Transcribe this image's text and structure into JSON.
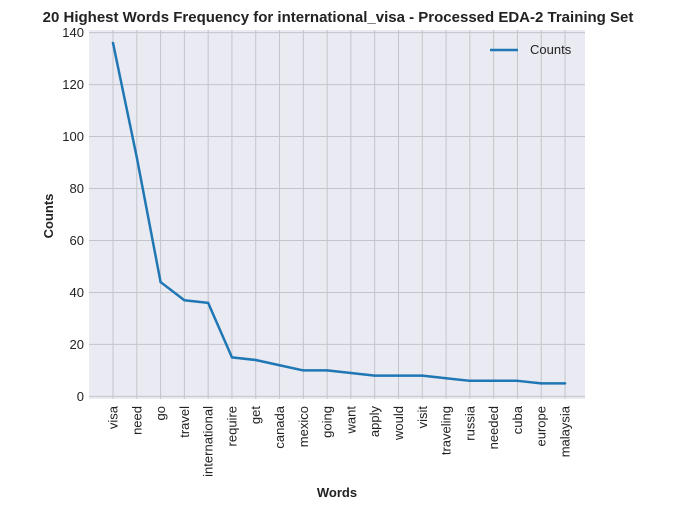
{
  "chart_data": {
    "type": "line",
    "title": "20 Highest Words Frequency for international_visa - Processed EDA-2 Training Set",
    "xlabel": "Words",
    "ylabel": "Counts",
    "ylim": [
      -1,
      141
    ],
    "yticks": [
      0,
      20,
      40,
      60,
      80,
      100,
      120,
      140
    ],
    "grid": true,
    "legend_position": "top-right",
    "categories": [
      "visa",
      "need",
      "go",
      "travel",
      "international",
      "require",
      "get",
      "canada",
      "mexico",
      "going",
      "want",
      "apply",
      "would",
      "visit",
      "traveling",
      "russia",
      "needed",
      "cuba",
      "europe",
      "malaysia"
    ],
    "series": [
      {
        "name": "Counts",
        "color": "#1f77b4",
        "values": [
          136,
          92,
          44,
          37,
          36,
          15,
          14,
          12,
          10,
          10,
          9,
          8,
          8,
          8,
          7,
          6,
          6,
          6,
          5,
          5
        ]
      }
    ]
  }
}
